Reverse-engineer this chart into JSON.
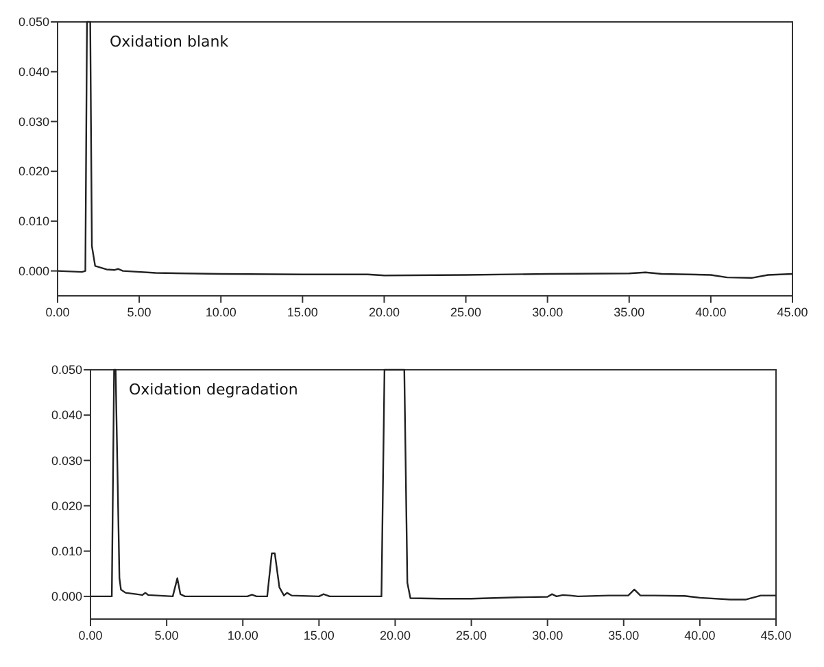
{
  "chart_data": [
    {
      "type": "line",
      "title": "Oxidation blank",
      "xlim": [
        0,
        45
      ],
      "ylim": [
        -0.005,
        0.05
      ],
      "xticks": [
        {
          "value": 0,
          "label": "0.00"
        },
        {
          "value": 5,
          "label": "5.00"
        },
        {
          "value": 10,
          "label": "10.00"
        },
        {
          "value": 15,
          "label": "15.00"
        },
        {
          "value": 20,
          "label": "20.00"
        },
        {
          "value": 25,
          "label": "25.00"
        },
        {
          "value": 30,
          "label": "30.00"
        },
        {
          "value": 35,
          "label": "35.00"
        },
        {
          "value": 40,
          "label": "40.00"
        },
        {
          "value": 45,
          "label": "45.00"
        }
      ],
      "yticks": [
        {
          "value": 0,
          "label": "0.000"
        },
        {
          "value": 0.01,
          "label": "0.010"
        },
        {
          "value": 0.02,
          "label": "0.020"
        },
        {
          "value": 0.03,
          "label": "0.030"
        },
        {
          "value": 0.04,
          "label": "0.040"
        },
        {
          "value": 0.05,
          "label": "0.050"
        }
      ],
      "grid": false,
      "series": [
        {
          "color": "#222222",
          "x": [
            0,
            1.5,
            1.7,
            1.8,
            2.0,
            2.1,
            2.3,
            3,
            3.5,
            3.7,
            4,
            6,
            10,
            15,
            19,
            20,
            25,
            30,
            35,
            36,
            37,
            40,
            41,
            42.5,
            43.5,
            45
          ],
          "values": [
            0,
            -0.0002,
            0,
            0.05,
            0.05,
            0.005,
            0.001,
            0.0003,
            0.0002,
            0.0004,
            0,
            -0.0004,
            -0.0006,
            -0.0007,
            -0.0007,
            -0.0009,
            -0.0008,
            -0.0006,
            -0.0005,
            -0.0003,
            -0.0006,
            -0.0008,
            -0.0013,
            -0.0014,
            -0.0008,
            -0.0006
          ]
        }
      ]
    },
    {
      "type": "line",
      "title": "Oxidation degradation",
      "xlim": [
        0,
        45
      ],
      "ylim": [
        -0.005,
        0.05
      ],
      "xticks": [
        {
          "value": 0,
          "label": "0.00"
        },
        {
          "value": 5,
          "label": "5.00"
        },
        {
          "value": 10,
          "label": "10.00"
        },
        {
          "value": 15,
          "label": "15.00"
        },
        {
          "value": 20,
          "label": "20.00"
        },
        {
          "value": 25,
          "label": "25.00"
        },
        {
          "value": 30,
          "label": "30.00"
        },
        {
          "value": 35,
          "label": "35.00"
        },
        {
          "value": 40,
          "label": "40.00"
        },
        {
          "value": 45,
          "label": "45.00"
        }
      ],
      "yticks": [
        {
          "value": 0,
          "label": "0.000"
        },
        {
          "value": 0.01,
          "label": "0.010"
        },
        {
          "value": 0.02,
          "label": "0.020"
        },
        {
          "value": 0.03,
          "label": "0.030"
        },
        {
          "value": 0.04,
          "label": "0.040"
        },
        {
          "value": 0.05,
          "label": "0.050"
        }
      ],
      "grid": false,
      "series": [
        {
          "color": "#222222",
          "x": [
            0,
            1.4,
            1.55,
            1.65,
            1.9,
            2.0,
            2.3,
            3,
            3.4,
            3.6,
            3.8,
            5.4,
            5.7,
            5.9,
            6.2,
            8,
            10.3,
            10.6,
            10.9,
            11.6,
            11.9,
            12.1,
            12.4,
            12.7,
            12.9,
            13.2,
            15,
            15.3,
            15.7,
            17,
            19.1,
            19.3,
            19.5,
            20.4,
            20.6,
            20.8,
            21,
            23,
            25,
            28,
            30,
            30.3,
            30.6,
            31,
            31.5,
            32,
            34,
            35.3,
            35.7,
            36.1,
            37,
            39,
            40,
            42,
            43,
            44,
            45
          ],
          "values": [
            0,
            0,
            0.05,
            0.05,
            0.004,
            0.0015,
            0.0008,
            0.0005,
            0.0003,
            0.0008,
            0.0003,
            0,
            0.004,
            0.0005,
            0,
            0,
            0,
            0.0004,
            0,
            0,
            0.0095,
            0.0095,
            0.002,
            0.0002,
            0.0008,
            0.0002,
            0,
            0.0005,
            0,
            0,
            0,
            0.05,
            0.05,
            0.05,
            0.05,
            0.003,
            -0.0004,
            -0.0005,
            -0.0005,
            -0.0002,
            -0.0001,
            0.0005,
            0,
            0.0003,
            0.0002,
            0,
            0.0002,
            0.0002,
            0.0015,
            0.0002,
            0.0002,
            0.0001,
            -0.0003,
            -0.0007,
            -0.0007,
            0.0002,
            0.0002
          ]
        }
      ]
    }
  ]
}
